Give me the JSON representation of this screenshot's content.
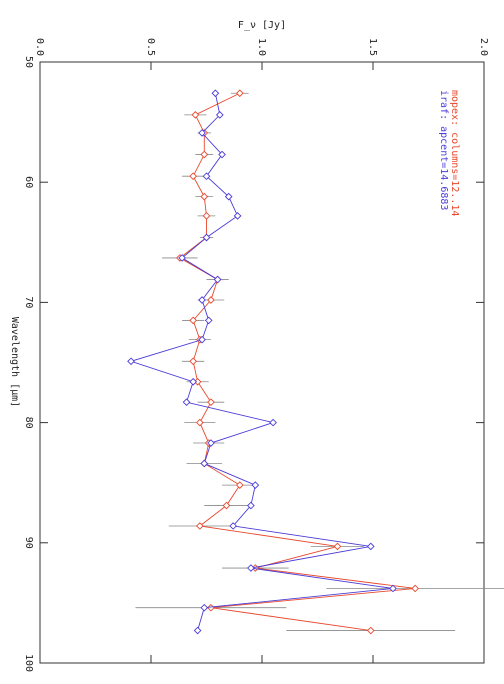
{
  "chart_data": {
    "type": "line",
    "xlabel": "Wavelength [µm]",
    "ylabel": "F_ν [Jy]",
    "x": [
      52.6,
      54.4,
      55.9,
      57.7,
      59.5,
      61.2,
      62.8,
      64.6,
      66.3,
      68.1,
      69.8,
      71.5,
      73.1,
      74.9,
      76.6,
      78.3,
      80.0,
      81.7,
      83.4,
      85.2,
      86.9,
      88.6,
      90.3,
      92.1,
      93.8,
      95.4,
      97.3
    ],
    "series": [
      {
        "name": "mopex: columns=12..14",
        "color": "#e8482c",
        "values": [
          0.9,
          0.7,
          0.74,
          0.74,
          0.69,
          0.74,
          0.75,
          0.75,
          0.63,
          0.8,
          0.77,
          0.69,
          0.72,
          0.69,
          0.71,
          0.77,
          0.72,
          0.76,
          0.74,
          0.9,
          0.84,
          0.72,
          1.34,
          0.97,
          1.69,
          0.77,
          1.49
        ],
        "errors": [
          0.04,
          0.05,
          0.03,
          0.04,
          0.05,
          0.04,
          0.04,
          0.03,
          0.08,
          0.05,
          0.06,
          0.05,
          0.05,
          0.05,
          0.05,
          0.06,
          0.07,
          0.07,
          0.08,
          0.08,
          0.1,
          0.14,
          0.12,
          0.15,
          0.4,
          0.34,
          0.38
        ]
      },
      {
        "name": "iraf: apcent=14.6883",
        "color": "#4a3cd8",
        "values": [
          0.79,
          0.81,
          0.73,
          0.82,
          0.75,
          0.85,
          0.89,
          0.75,
          0.64,
          0.8,
          0.73,
          0.76,
          0.73,
          0.41,
          0.69,
          0.66,
          1.05,
          0.77,
          0.74,
          0.97,
          0.95,
          0.87,
          1.49,
          0.95,
          1.59,
          0.74,
          0.71
        ]
      }
    ],
    "xlim": [
      50,
      100
    ],
    "xticks": [
      50,
      60,
      70,
      80,
      90,
      100
    ],
    "ylim": [
      0,
      2
    ],
    "yticks": [
      {
        "value": 0,
        "label": "0.0"
      },
      0.5,
      {
        "value": 1,
        "label": "1.0"
      },
      1.5,
      {
        "value": 2,
        "label": "2.0"
      }
    ],
    "errorbar_color": "#888888"
  }
}
